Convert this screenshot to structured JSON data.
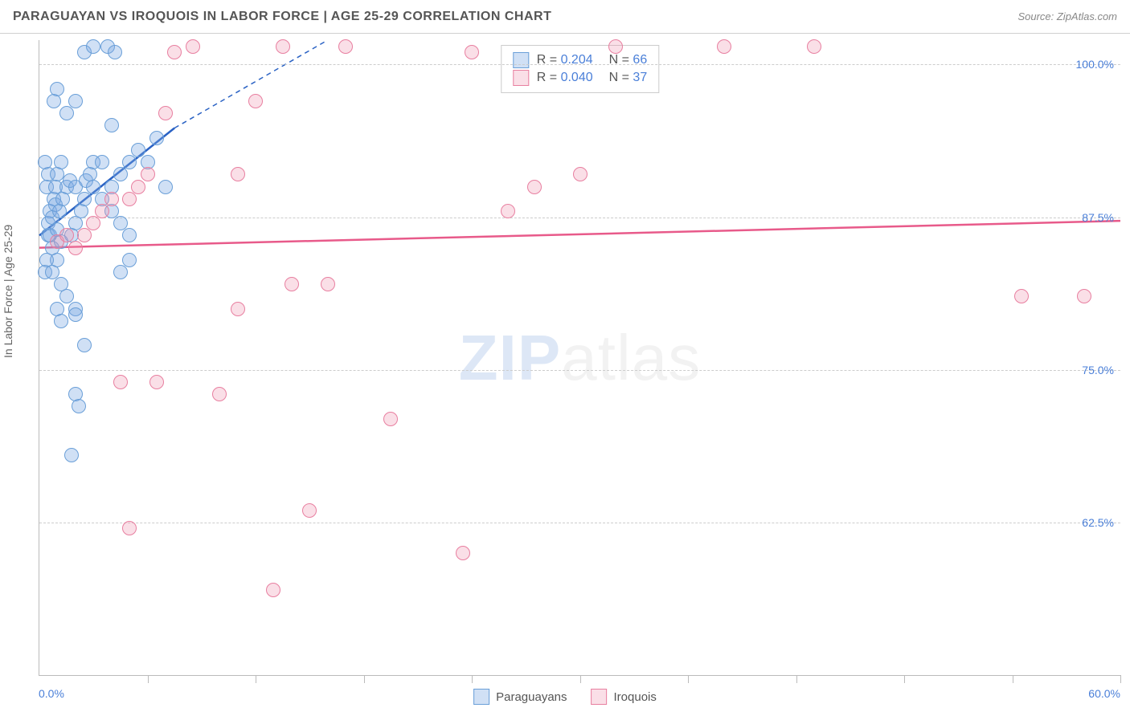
{
  "title": "PARAGUAYAN VS IROQUOIS IN LABOR FORCE | AGE 25-29 CORRELATION CHART",
  "source_label": "Source: ZipAtlas.com",
  "ylabel": "In Labor Force | Age 25-29",
  "watermark_a": "ZIP",
  "watermark_b": "atlas",
  "chart": {
    "type": "scatter",
    "xlim": [
      0,
      60
    ],
    "ylim": [
      50,
      102
    ],
    "xaxis_min_label": "0.0%",
    "xaxis_max_label": "60.0%",
    "ytick_labels": [
      "62.5%",
      "75.0%",
      "87.5%",
      "100.0%"
    ],
    "ytick_values": [
      62.5,
      75.0,
      87.5,
      100.0
    ],
    "xtick_values": [
      6,
      12,
      18,
      24,
      30,
      36,
      42,
      48,
      54,
      60
    ],
    "series": [
      {
        "name": "Paraguayans",
        "fill": "rgba(120,165,225,0.35)",
        "stroke": "#6a9fd8",
        "R_label": "R =",
        "R": "0.204",
        "N_label": "N =",
        "N": "66",
        "trend": {
          "x1": 0,
          "y1": 86.0,
          "x2": 7.5,
          "y2": 94.8,
          "dash_to_x": 16,
          "dash_to_y": 102,
          "color": "#2a62c4",
          "width": 2.5
        },
        "points": [
          [
            0.5,
            86
          ],
          [
            0.5,
            87
          ],
          [
            0.7,
            85
          ],
          [
            0.6,
            88
          ],
          [
            0.8,
            89
          ],
          [
            0.4,
            90
          ],
          [
            0.9,
            90
          ],
          [
            0.5,
            91
          ],
          [
            1.0,
            91
          ],
          [
            0.3,
            92
          ],
          [
            1.2,
            92
          ],
          [
            0.6,
            86
          ],
          [
            0.7,
            87.5
          ],
          [
            0.9,
            88.5
          ],
          [
            1.1,
            88
          ],
          [
            1.3,
            89
          ],
          [
            1.5,
            90
          ],
          [
            1.7,
            90.5
          ],
          [
            1.0,
            86.5
          ],
          [
            1.2,
            85.5
          ],
          [
            1.0,
            84
          ],
          [
            0.4,
            84
          ],
          [
            0.3,
            83
          ],
          [
            0.7,
            83
          ],
          [
            1.2,
            82
          ],
          [
            1.5,
            81
          ],
          [
            1.0,
            80
          ],
          [
            1.2,
            79
          ],
          [
            2.0,
            80
          ],
          [
            2.0,
            79.5
          ],
          [
            1.8,
            86
          ],
          [
            2.0,
            87
          ],
          [
            2.3,
            88
          ],
          [
            2.5,
            89
          ],
          [
            2.0,
            90
          ],
          [
            2.6,
            90.5
          ],
          [
            2.8,
            91
          ],
          [
            3.0,
            92
          ],
          [
            3.5,
            92
          ],
          [
            3.0,
            90
          ],
          [
            3.5,
            89
          ],
          [
            4.0,
            90
          ],
          [
            4.5,
            91
          ],
          [
            5.0,
            92
          ],
          [
            5.5,
            93
          ],
          [
            4.0,
            95
          ],
          [
            1.5,
            96
          ],
          [
            2.0,
            97
          ],
          [
            0.8,
            97
          ],
          [
            1.0,
            98
          ],
          [
            2.5,
            101
          ],
          [
            3.0,
            101.5
          ],
          [
            3.8,
            101.5
          ],
          [
            4.2,
            101
          ],
          [
            4.0,
            88
          ],
          [
            4.5,
            87
          ],
          [
            5.0,
            86
          ],
          [
            5.0,
            84
          ],
          [
            4.5,
            83
          ],
          [
            2.0,
            73
          ],
          [
            2.2,
            72
          ],
          [
            1.8,
            68
          ],
          [
            2.5,
            77
          ],
          [
            6.0,
            92
          ],
          [
            6.5,
            94
          ],
          [
            7.0,
            90
          ]
        ]
      },
      {
        "name": "Iroquois",
        "fill": "rgba(240,150,175,0.30)",
        "stroke": "#e87fa0",
        "R_label": "R =",
        "R": "0.040",
        "N_label": "N =",
        "N": "37",
        "trend": {
          "x1": 0,
          "y1": 85.0,
          "x2": 60,
          "y2": 87.2,
          "color": "#e85a8a",
          "width": 2.5
        },
        "points": [
          [
            1.0,
            85.5
          ],
          [
            1.5,
            86
          ],
          [
            2.0,
            85
          ],
          [
            2.5,
            86
          ],
          [
            3.0,
            87
          ],
          [
            3.5,
            88
          ],
          [
            4.0,
            89
          ],
          [
            5.0,
            89
          ],
          [
            5.5,
            90
          ],
          [
            6.0,
            91
          ],
          [
            7.0,
            96
          ],
          [
            7.5,
            101
          ],
          [
            8.5,
            101.5
          ],
          [
            12.0,
            97
          ],
          [
            13.5,
            101.5
          ],
          [
            17.0,
            101.5
          ],
          [
            11.0,
            91
          ],
          [
            14.0,
            82
          ],
          [
            16.0,
            82
          ],
          [
            11.0,
            80
          ],
          [
            4.5,
            74
          ],
          [
            6.5,
            74
          ],
          [
            10.0,
            73
          ],
          [
            15.0,
            63.5
          ],
          [
            5.0,
            62
          ],
          [
            13.0,
            57
          ],
          [
            19.5,
            71
          ],
          [
            23.5,
            60
          ],
          [
            24.0,
            101
          ],
          [
            26.0,
            88
          ],
          [
            27.5,
            90
          ],
          [
            30.0,
            91
          ],
          [
            32.0,
            101.5
          ],
          [
            38.0,
            101.5
          ],
          [
            43.0,
            101.5
          ],
          [
            54.5,
            81
          ],
          [
            58.0,
            81
          ]
        ]
      }
    ]
  },
  "legend_bottom": [
    {
      "label": "Paraguayans",
      "fill": "rgba(120,165,225,0.35)",
      "stroke": "#6a9fd8"
    },
    {
      "label": "Iroquois",
      "fill": "rgba(240,150,175,0.30)",
      "stroke": "#e87fa0"
    }
  ]
}
